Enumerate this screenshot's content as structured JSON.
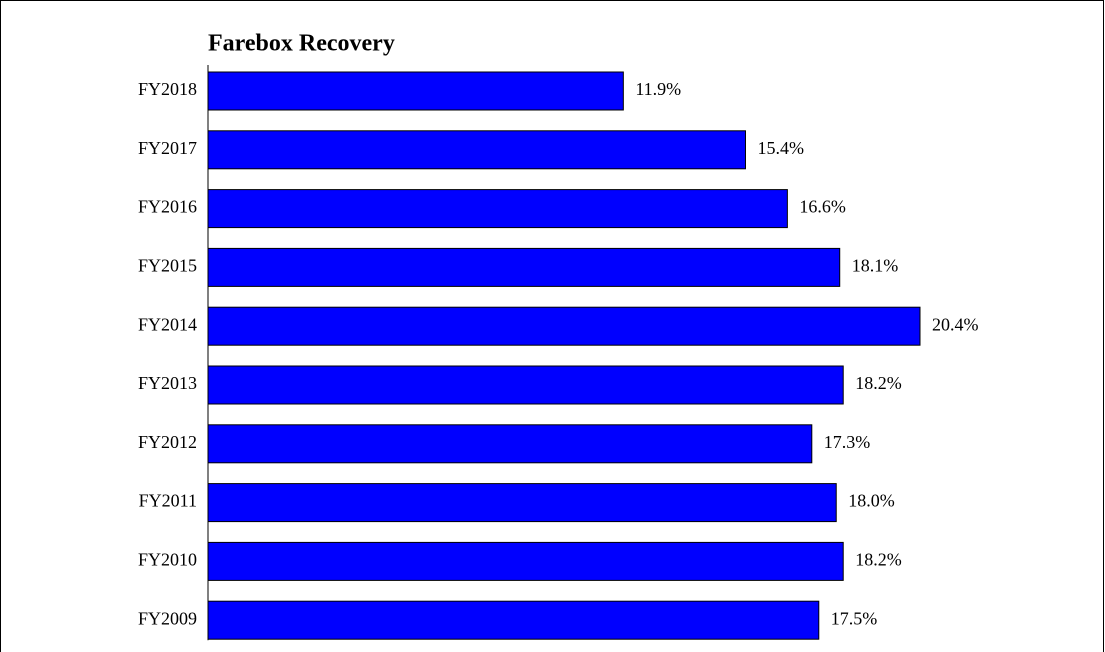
{
  "chart_data": {
    "type": "bar",
    "orientation": "horizontal",
    "title": "Farebox Recovery",
    "categories": [
      "FY2018",
      "FY2017",
      "FY2016",
      "FY2015",
      "FY2014",
      "FY2013",
      "FY2012",
      "FY2011",
      "FY2010",
      "FY2009"
    ],
    "values": [
      11.9,
      15.4,
      16.6,
      18.1,
      20.4,
      18.2,
      17.3,
      18.0,
      18.2,
      17.5
    ],
    "value_labels": [
      "11.9%",
      "15.4%",
      "16.6%",
      "18.1%",
      "20.4%",
      "18.2%",
      "17.3%",
      "18.0%",
      "18.2%",
      "17.5%"
    ],
    "color": "#0000ff"
  }
}
